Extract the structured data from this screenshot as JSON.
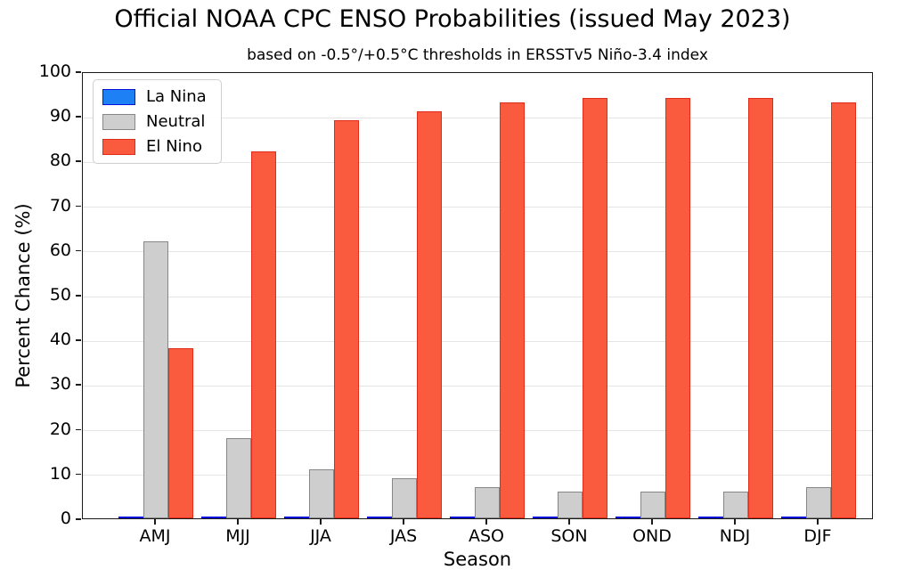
{
  "chart_data": {
    "type": "bar",
    "title": "Official NOAA CPC ENSO Probabilities (issued May 2023)",
    "subtitle": "based on -0.5°/+0.5°C thresholds in ERSSTv5 Niño-3.4 index",
    "xlabel": "Season",
    "ylabel": "Percent Chance (%)",
    "categories": [
      "AMJ",
      "MJJ",
      "JJA",
      "JAS",
      "ASO",
      "SON",
      "OND",
      "NDJ",
      "DJF"
    ],
    "series": [
      {
        "name": "La Nina",
        "fill_color": "#1e80f5",
        "edge_color": "#0a10dc",
        "values": [
          0,
          0,
          0,
          0,
          0,
          0,
          0,
          0,
          0
        ]
      },
      {
        "name": "Neutral",
        "fill_color": "#cecece",
        "edge_color": "#878787",
        "values": [
          62,
          18,
          11,
          9,
          7,
          6,
          6,
          6,
          7
        ]
      },
      {
        "name": "El Nino",
        "fill_color": "#fa5a3d",
        "edge_color": "#e02d1a",
        "values": [
          38,
          82,
          89,
          91,
          93,
          94,
          94,
          94,
          93
        ]
      }
    ],
    "ylim": [
      0,
      100
    ],
    "yticks": [
      0,
      10,
      20,
      30,
      40,
      50,
      60,
      70,
      80,
      90,
      100
    ],
    "grid": "horizontal",
    "legend_position": "upper-left",
    "gridline_color": "#e5e5e5",
    "spine_color": "#1a1a1a"
  }
}
